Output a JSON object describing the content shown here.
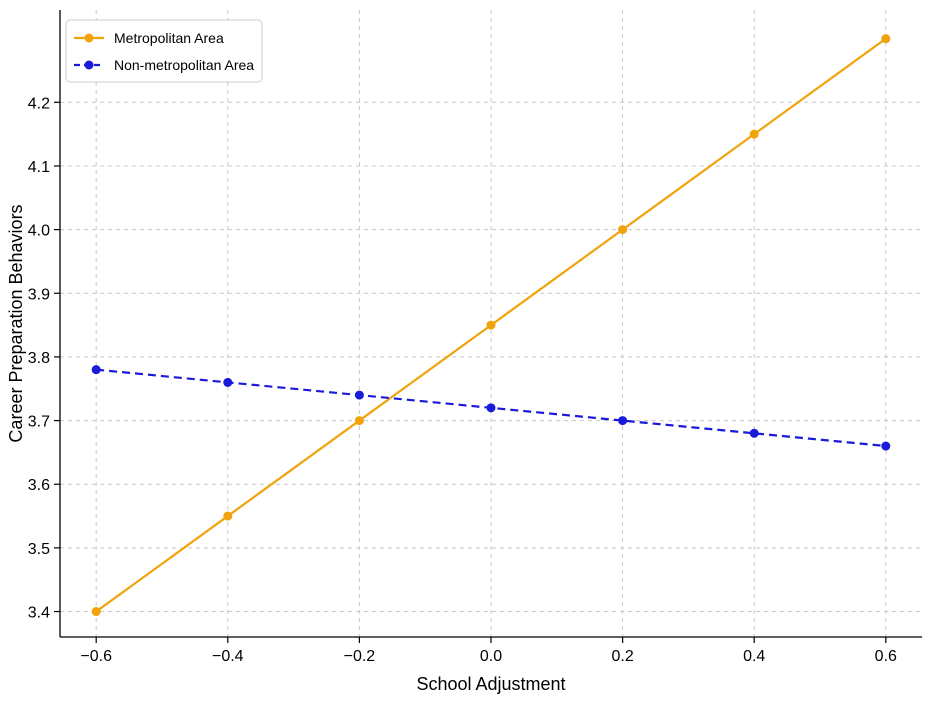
{
  "chart_data": {
    "type": "line",
    "title": "",
    "xlabel": "School Adjustment",
    "ylabel": "Career Preparation Behaviors",
    "x": [
      -0.6,
      -0.4,
      -0.2,
      0.0,
      0.2,
      0.4,
      0.6
    ],
    "xlim": [
      -0.655,
      0.655
    ],
    "ylim": [
      3.36,
      4.345
    ],
    "x_ticks": [
      -0.6,
      -0.4,
      -0.2,
      0.0,
      0.2,
      0.4,
      0.6
    ],
    "x_tick_labels": [
      "−0.6",
      "−0.4",
      "−0.2",
      "0.0",
      "0.2",
      "0.4",
      "0.6"
    ],
    "y_ticks": [
      3.4,
      3.5,
      3.6,
      3.7,
      3.8,
      3.9,
      4.0,
      4.1,
      4.2
    ],
    "y_tick_labels": [
      "3.4",
      "3.5",
      "3.6",
      "3.7",
      "3.8",
      "3.9",
      "4.0",
      "4.1",
      "4.2"
    ],
    "grid": true,
    "legend_position": "top-left",
    "series": [
      {
        "name": "Metropolitan Area",
        "color": "#f0a30a",
        "line_style": "solid",
        "marker": "circle",
        "values": [
          3.4,
          3.55,
          3.7,
          3.85,
          4.0,
          4.15,
          4.3
        ]
      },
      {
        "name": "Non-metropolitan Area",
        "color": "#1a1adb",
        "line_style": "dashed",
        "marker": "circle",
        "values": [
          3.78,
          3.76,
          3.74,
          3.72,
          3.7,
          3.68,
          3.66
        ]
      }
    ]
  }
}
